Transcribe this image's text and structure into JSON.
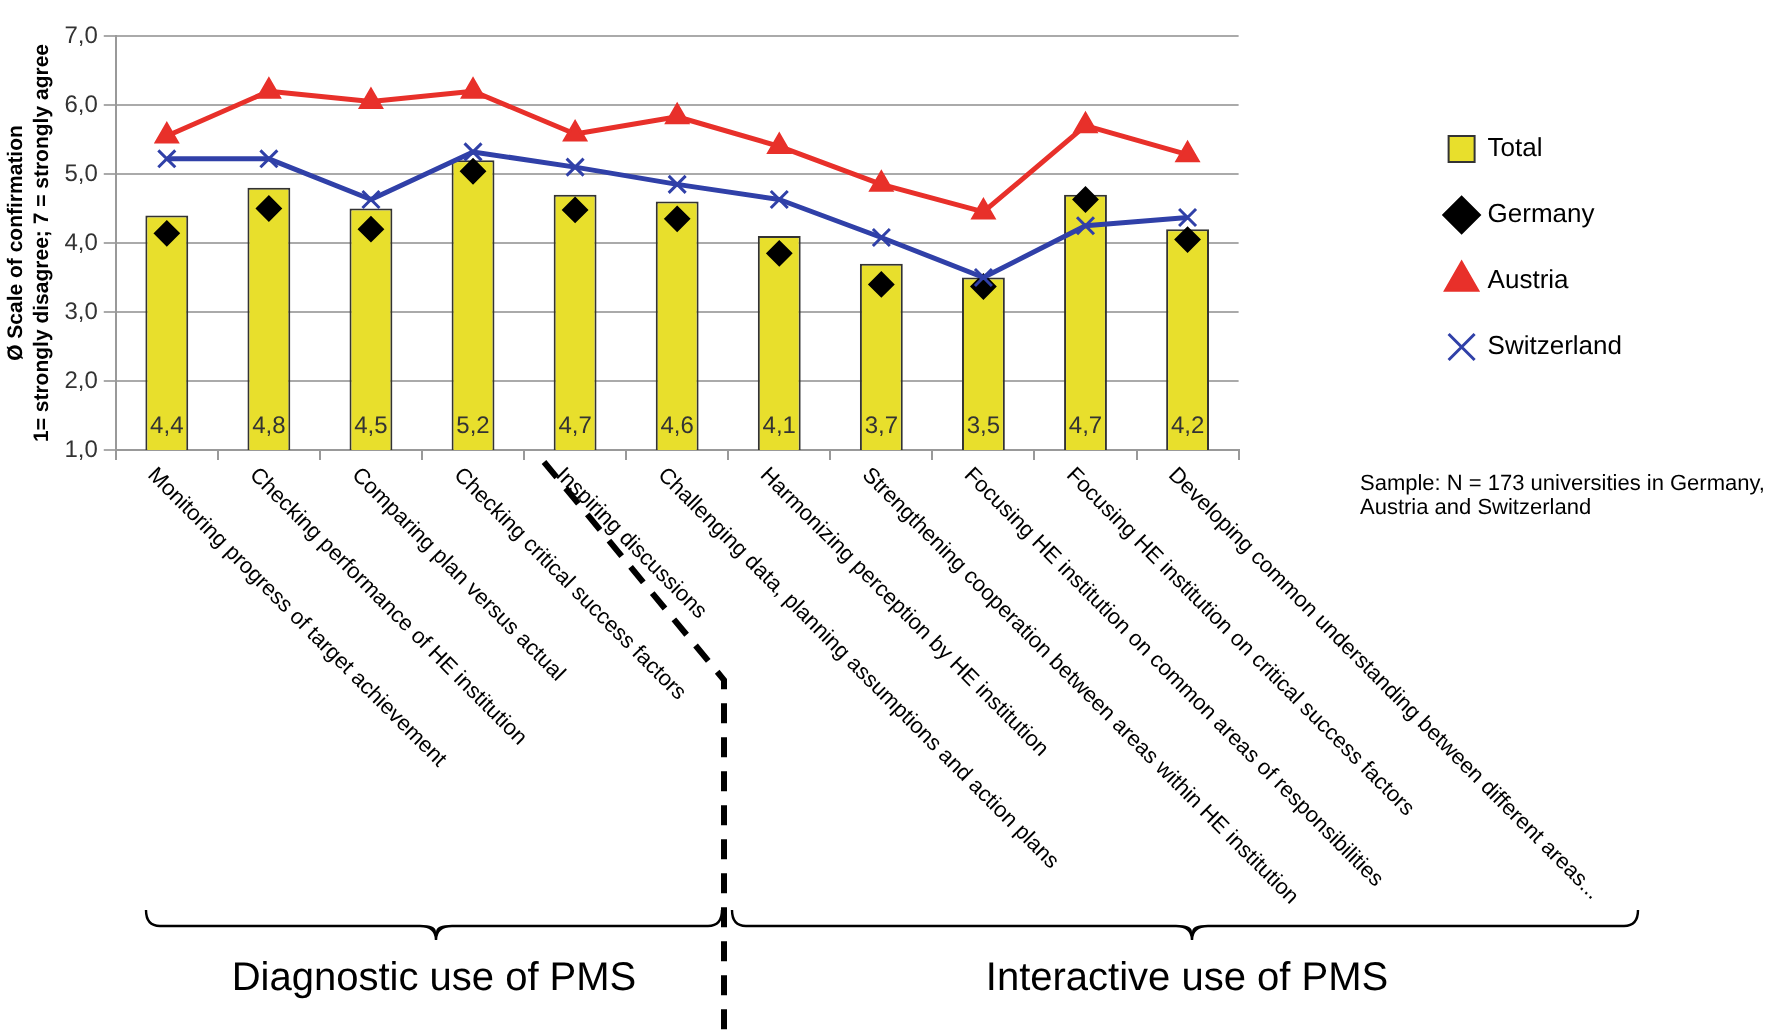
{
  "chart_data": {
    "type": "bar",
    "ylabel": "Ø Scale of confirmation\n1= strongly disagree; 7 = strongly agree",
    "categories": [
      "Monitoring progress of target achievement",
      "Checking performance of HE institution",
      "Comparing plan versus actual",
      "Checking critical success factors",
      "Inspiring discussions",
      "Challenging data, planning assumptions and action plans",
      "Harmonizing perception by HE institution",
      "Strengthening cooperation between areas within HE institution",
      "Focusing HE institution on common areas of responsibilities",
      "Focusing HE institution on critical success factors",
      "Developing common understanding between different areas..."
    ],
    "series": [
      {
        "name": "Total",
        "color": "#e8df2c",
        "values": [
          4.4,
          4.8,
          4.5,
          5.2,
          4.7,
          4.6,
          4.1,
          3.7,
          3.5,
          4.7,
          4.2
        ],
        "value_labels": [
          "4,4",
          "4,8",
          "4,5",
          "5,2",
          "4,7",
          "4,6",
          "4,1",
          "3,7",
          "3,5",
          "4,7",
          "4,2"
        ]
      },
      {
        "name": "Germany",
        "type": "scatter",
        "marker": "diamond",
        "color": "#000000",
        "values": [
          4.14,
          4.5,
          4.2,
          5.04,
          4.48,
          4.35,
          3.85,
          3.4,
          3.37,
          4.63,
          4.05
        ]
      },
      {
        "name": "Austria",
        "type": "line",
        "marker": "triangle",
        "color": "#e8302a",
        "values": [
          5.55,
          6.2,
          6.05,
          6.2,
          5.58,
          5.83,
          5.4,
          4.85,
          4.45,
          5.7,
          5.28
        ]
      },
      {
        "name": "Switzerland",
        "type": "line",
        "marker": "cross",
        "color": "#3040a8",
        "values": [
          5.22,
          5.22,
          4.63,
          5.32,
          5.1,
          4.85,
          4.63,
          4.08,
          3.5,
          4.25,
          4.37
        ]
      }
    ],
    "ylim": [
      1,
      7
    ],
    "yticks": [
      {
        "value": 1,
        "label": "1,0"
      },
      {
        "value": 2,
        "label": "2,0"
      },
      {
        "value": 3,
        "label": "3,0"
      },
      {
        "value": 4,
        "label": "4,0"
      },
      {
        "value": 5,
        "label": "5,0"
      },
      {
        "value": 6,
        "label": "6,0"
      },
      {
        "value": 7,
        "label": "7,0"
      }
    ],
    "grid": "y",
    "legend": "right",
    "annotations": [
      "Sample: N = 173 universities in Germany, Austria and Switzerland",
      "Diagnostic use of PMS",
      "Interactive use of PMS"
    ]
  }
}
